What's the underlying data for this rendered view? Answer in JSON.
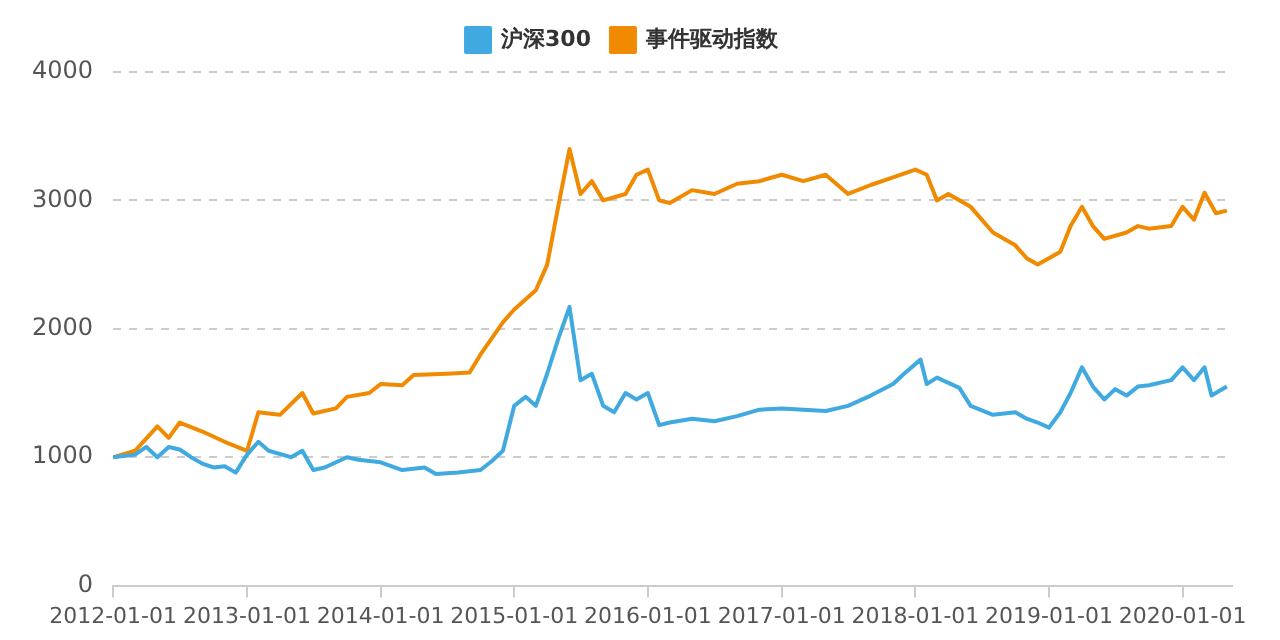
{
  "chart_data": {
    "type": "line",
    "legend": "top",
    "grid": "y",
    "marker": "none",
    "line_style": "solid",
    "ylim": [
      0,
      4000
    ],
    "yticks": [
      0,
      1000,
      2000,
      3000,
      4000
    ],
    "xlim": [
      "2012-01-01",
      "2020-05-15"
    ],
    "xticks": [
      "2012-01-01",
      "2013-01-01",
      "2014-01-01",
      "2015-01-01",
      "2016-01-01",
      "2017-01-01",
      "2018-01-01",
      "2019-01-01",
      "2020-01-01"
    ],
    "series": [
      {
        "name": "沪深300",
        "color": "#3fa9e0",
        "x": [
          "2012-01-01",
          "2012-03-01",
          "2012-04-01",
          "2012-05-01",
          "2012-06-01",
          "2012-07-01",
          "2012-08-01",
          "2012-09-01",
          "2012-10-01",
          "2012-11-01",
          "2012-12-01",
          "2013-01-01",
          "2013-02-01",
          "2013-03-01",
          "2013-05-01",
          "2013-06-01",
          "2013-07-01",
          "2013-08-01",
          "2013-10-01",
          "2013-11-01",
          "2014-01-01",
          "2014-03-01",
          "2014-05-01",
          "2014-06-01",
          "2014-08-01",
          "2014-10-01",
          "2014-11-01",
          "2014-12-01",
          "2015-01-01",
          "2015-02-01",
          "2015-03-01",
          "2015-04-01",
          "2015-05-01",
          "2015-06-01",
          "2015-07-01",
          "2015-08-01",
          "2015-09-01",
          "2015-10-01",
          "2015-11-01",
          "2015-12-01",
          "2016-01-01",
          "2016-02-01",
          "2016-03-01",
          "2016-05-01",
          "2016-07-01",
          "2016-09-01",
          "2016-11-01",
          "2017-01-01",
          "2017-03-01",
          "2017-05-01",
          "2017-07-01",
          "2017-09-01",
          "2017-11-01",
          "2017-12-01",
          "2018-01-15",
          "2018-02-01",
          "2018-03-01",
          "2018-05-01",
          "2018-06-01",
          "2018-08-01",
          "2018-10-01",
          "2018-11-01",
          "2018-12-01",
          "2019-01-01",
          "2019-02-01",
          "2019-03-01",
          "2019-04-01",
          "2019-05-01",
          "2019-06-01",
          "2019-07-01",
          "2019-08-01",
          "2019-09-01",
          "2019-10-01",
          "2019-12-01",
          "2020-01-01",
          "2020-02-01",
          "2020-03-01",
          "2020-03-20",
          "2020-05-01"
        ],
        "values": [
          1000,
          1020,
          1080,
          1000,
          1080,
          1060,
          1000,
          950,
          920,
          930,
          880,
          1020,
          1120,
          1050,
          1000,
          1050,
          900,
          920,
          1000,
          980,
          960,
          900,
          920,
          870,
          880,
          900,
          970,
          1050,
          1400,
          1470,
          1400,
          1650,
          1920,
          2170,
          1600,
          1650,
          1400,
          1350,
          1500,
          1450,
          1500,
          1250,
          1270,
          1300,
          1280,
          1320,
          1370,
          1380,
          1370,
          1360,
          1400,
          1480,
          1570,
          1650,
          1760,
          1570,
          1620,
          1540,
          1400,
          1330,
          1350,
          1300,
          1270,
          1230,
          1350,
          1500,
          1700,
          1550,
          1450,
          1530,
          1480,
          1550,
          1560,
          1600,
          1700,
          1600,
          1700,
          1480,
          1550
        ]
      },
      {
        "name": "事件驱动指数",
        "color": "#f08a00",
        "x": [
          "2012-01-01",
          "2012-03-01",
          "2012-05-01",
          "2012-06-01",
          "2012-07-01",
          "2012-09-01",
          "2012-11-01",
          "2013-01-01",
          "2013-02-01",
          "2013-03-01",
          "2013-04-01",
          "2013-06-01",
          "2013-07-01",
          "2013-09-01",
          "2013-10-01",
          "2013-12-01",
          "2014-01-01",
          "2014-03-01",
          "2014-04-01",
          "2014-07-01",
          "2014-09-01",
          "2014-10-01",
          "2014-12-01",
          "2015-01-01",
          "2015-03-01",
          "2015-04-01",
          "2015-05-01",
          "2015-06-01",
          "2015-07-01",
          "2015-08-01",
          "2015-09-01",
          "2015-11-01",
          "2015-12-01",
          "2016-01-01",
          "2016-02-01",
          "2016-03-01",
          "2016-05-01",
          "2016-07-01",
          "2016-09-01",
          "2016-11-01",
          "2017-01-01",
          "2017-03-01",
          "2017-05-01",
          "2017-07-01",
          "2017-09-01",
          "2017-11-01",
          "2018-01-01",
          "2018-02-01",
          "2018-03-01",
          "2018-04-01",
          "2018-06-01",
          "2018-08-01",
          "2018-10-01",
          "2018-11-01",
          "2018-12-01",
          "2019-01-01",
          "2019-02-01",
          "2019-03-01",
          "2019-04-01",
          "2019-05-01",
          "2019-06-01",
          "2019-08-01",
          "2019-09-01",
          "2019-10-01",
          "2019-12-01",
          "2020-01-01",
          "2020-02-01",
          "2020-03-01",
          "2020-04-01",
          "2020-05-01"
        ],
        "values": [
          1000,
          1050,
          1240,
          1150,
          1270,
          1200,
          1120,
          1050,
          1350,
          1340,
          1330,
          1500,
          1340,
          1380,
          1470,
          1500,
          1570,
          1560,
          1640,
          1650,
          1660,
          1800,
          2050,
          2150,
          2300,
          2500,
          2950,
          3400,
          3050,
          3150,
          3000,
          3050,
          3200,
          3240,
          3000,
          2980,
          3080,
          3050,
          3130,
          3150,
          3200,
          3150,
          3200,
          3050,
          3120,
          3180,
          3240,
          3200,
          3000,
          3050,
          2950,
          2750,
          2650,
          2550,
          2500,
          2550,
          2600,
          2800,
          2950,
          2800,
          2700,
          2750,
          2800,
          2780,
          2800,
          2950,
          2850,
          3060,
          2900,
          2920
        ]
      }
    ]
  }
}
